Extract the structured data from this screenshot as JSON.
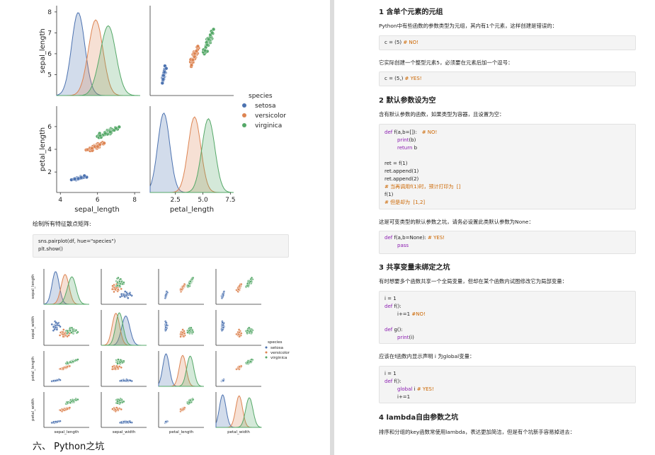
{
  "left": {
    "pairplot_small": {
      "legend_title": "species",
      "legend": [
        "setosa",
        "versicolor",
        "virginica"
      ],
      "xlabels": [
        "sepal_length",
        "petal_length"
      ],
      "ylabels": [
        "sepal_length",
        "petal_length"
      ],
      "yticks_sepal": [
        "8",
        "7",
        "6",
        "5"
      ],
      "yticks_petal": [
        "6",
        "4",
        "2"
      ],
      "xticks_sepal": [
        "4",
        "6",
        "8"
      ],
      "xticks_petal": [
        "2.5",
        "5.0",
        "7.5"
      ]
    },
    "caption": "绘制所有特征散点矩阵:",
    "code": [
      "sns.pairplot(df, hue=\"species\")",
      "plt.show()"
    ],
    "pairplot_full": {
      "labels": [
        "sepal_length",
        "sepal_width",
        "petal_length",
        "petal_width"
      ],
      "legend_title": "species",
      "legend": [
        "setosa",
        "versicolor",
        "virginica"
      ]
    },
    "section_title": "六、 Python之坑"
  },
  "colors": {
    "setosa": "#4c72b0",
    "versicolor": "#dd8452",
    "virginica": "#55a868"
  },
  "right": {
    "h1": "1 含单个元素的元组",
    "p1": "Python中有些函数的参数类型为元组，其内有1个元素，这样创建是错误的：",
    "code1": {
      "text": "c = (5) ",
      "comment": "# NO!"
    },
    "p2": "它实际创建一个整型元素5，必须要在元素后加一个逗号：",
    "code2": {
      "text": "c = (5,) ",
      "comment": "# YES!"
    },
    "h2": "2 默认参数设为空",
    "p3": "含有默认参数的函数，如果类型为容器，且设置为空：",
    "code3": {
      "l1a": "def",
      "l1b": " f(a,b=[]):   ",
      "l1c": "# NO!",
      "l2": "print",
      "l2b": "(b)",
      "l3": "return",
      "l3b": " b",
      "l4": "ret = f(1)",
      "l5": "ret.append(1)",
      "l6": "ret.append(2)",
      "l7": "# 当再调用f(1)时，预计打印为  []",
      "l8": "f(1)",
      "l9": "# 但是却为  [1,2]"
    },
    "p4": "这是可变类型的默认参数之坑，请务必设置此类默认参数为None：",
    "code4": {
      "a": "def",
      "b": " f(a,b=None): ",
      "c": "# YES!",
      "d": "pass"
    },
    "h3": "3 共享变量未绑定之坑",
    "p5": "有时想要多个函数共享一个全局变量，但却在某个函数内试图修改它为局部变量：",
    "code5": {
      "l1": "i = 1",
      "l2a": "def",
      "l2b": " f():",
      "l3": "i+=1 ",
      "l3c": "#NO!",
      "l4a": "def",
      "l4b": " g():",
      "l5": "print",
      "l5b": "(i)"
    },
    "p6": "应该在f函数内显示声明 i 为global变量：",
    "code6": {
      "l1": "i = 1",
      "l2a": "def",
      "l2b": " f():",
      "l3a": "global",
      "l3b": " i ",
      "l3c": "# YES!",
      "l4": "i+=1"
    },
    "h4": "4 lambda自由参数之坑",
    "p7": "排序和分组的key函数常使用lambda，表达更加简洁，但是有个坑新手容易掉进去："
  }
}
